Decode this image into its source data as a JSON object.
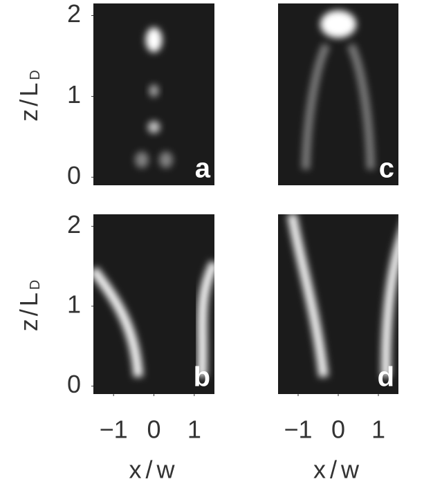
{
  "chart_data": [
    {
      "type": "heatmap",
      "label": "a",
      "ylim": [
        -0.1,
        2.15
      ],
      "yticks": [
        0,
        1,
        2
      ],
      "xlim": [
        -1.5,
        1.5
      ],
      "xticks": []
    },
    {
      "type": "heatmap",
      "label": "c",
      "ylim": [
        -0.1,
        2.15
      ],
      "yticks": [],
      "xlim": [
        -1.5,
        1.5
      ],
      "xticks": []
    },
    {
      "type": "heatmap",
      "label": "b",
      "ylim": [
        -0.1,
        2.15
      ],
      "yticks": [
        0,
        1,
        2
      ],
      "xlim": [
        -1.5,
        1.5
      ],
      "xticks": [
        {
          "value": -1,
          "label": "−1"
        },
        0,
        1
      ],
      "xlabel": "x/w"
    },
    {
      "type": "heatmap",
      "label": "d",
      "ylim": [
        -0.1,
        2.15
      ],
      "yticks": [],
      "xlim": [
        -1.5,
        1.5
      ],
      "xticks": [
        {
          "value": -1,
          "label": "−1"
        },
        0,
        1
      ],
      "xlabel": "x/w"
    }
  ],
  "ylabel": {
    "text": "z/L",
    "subscript": "D"
  }
}
